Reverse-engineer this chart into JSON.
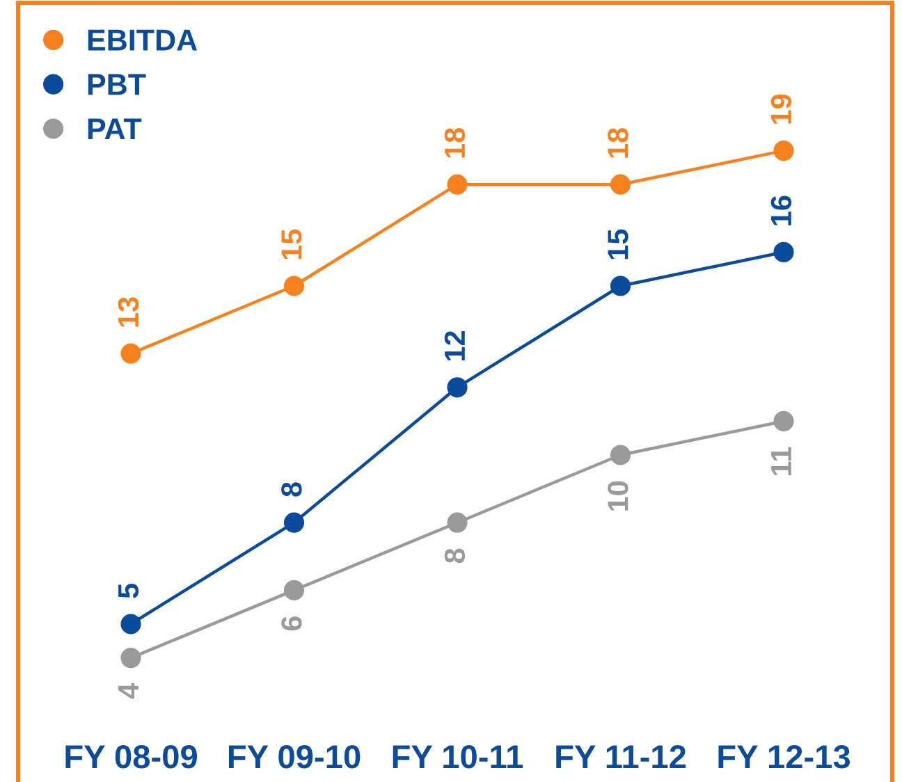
{
  "chart_data": {
    "type": "line",
    "categories": [
      "FY 08-09",
      "FY 09-10",
      "FY 10-11",
      "FY 11-12",
      "FY 12-13"
    ],
    "series": [
      {
        "name": "EBITDA",
        "color": "#f5821f",
        "values": [
          13,
          15,
          18,
          18,
          19
        ]
      },
      {
        "name": "PBT",
        "color": "#0c4a9b",
        "values": [
          5,
          8,
          12,
          15,
          16
        ]
      },
      {
        "name": "PAT",
        "color": "#9a9a9c",
        "values": [
          4,
          6,
          8,
          10,
          11
        ]
      }
    ],
    "tick_labels": "x",
    "data_labels": true,
    "legend": "top left",
    "marker": "circle",
    "line_style": "solid"
  }
}
